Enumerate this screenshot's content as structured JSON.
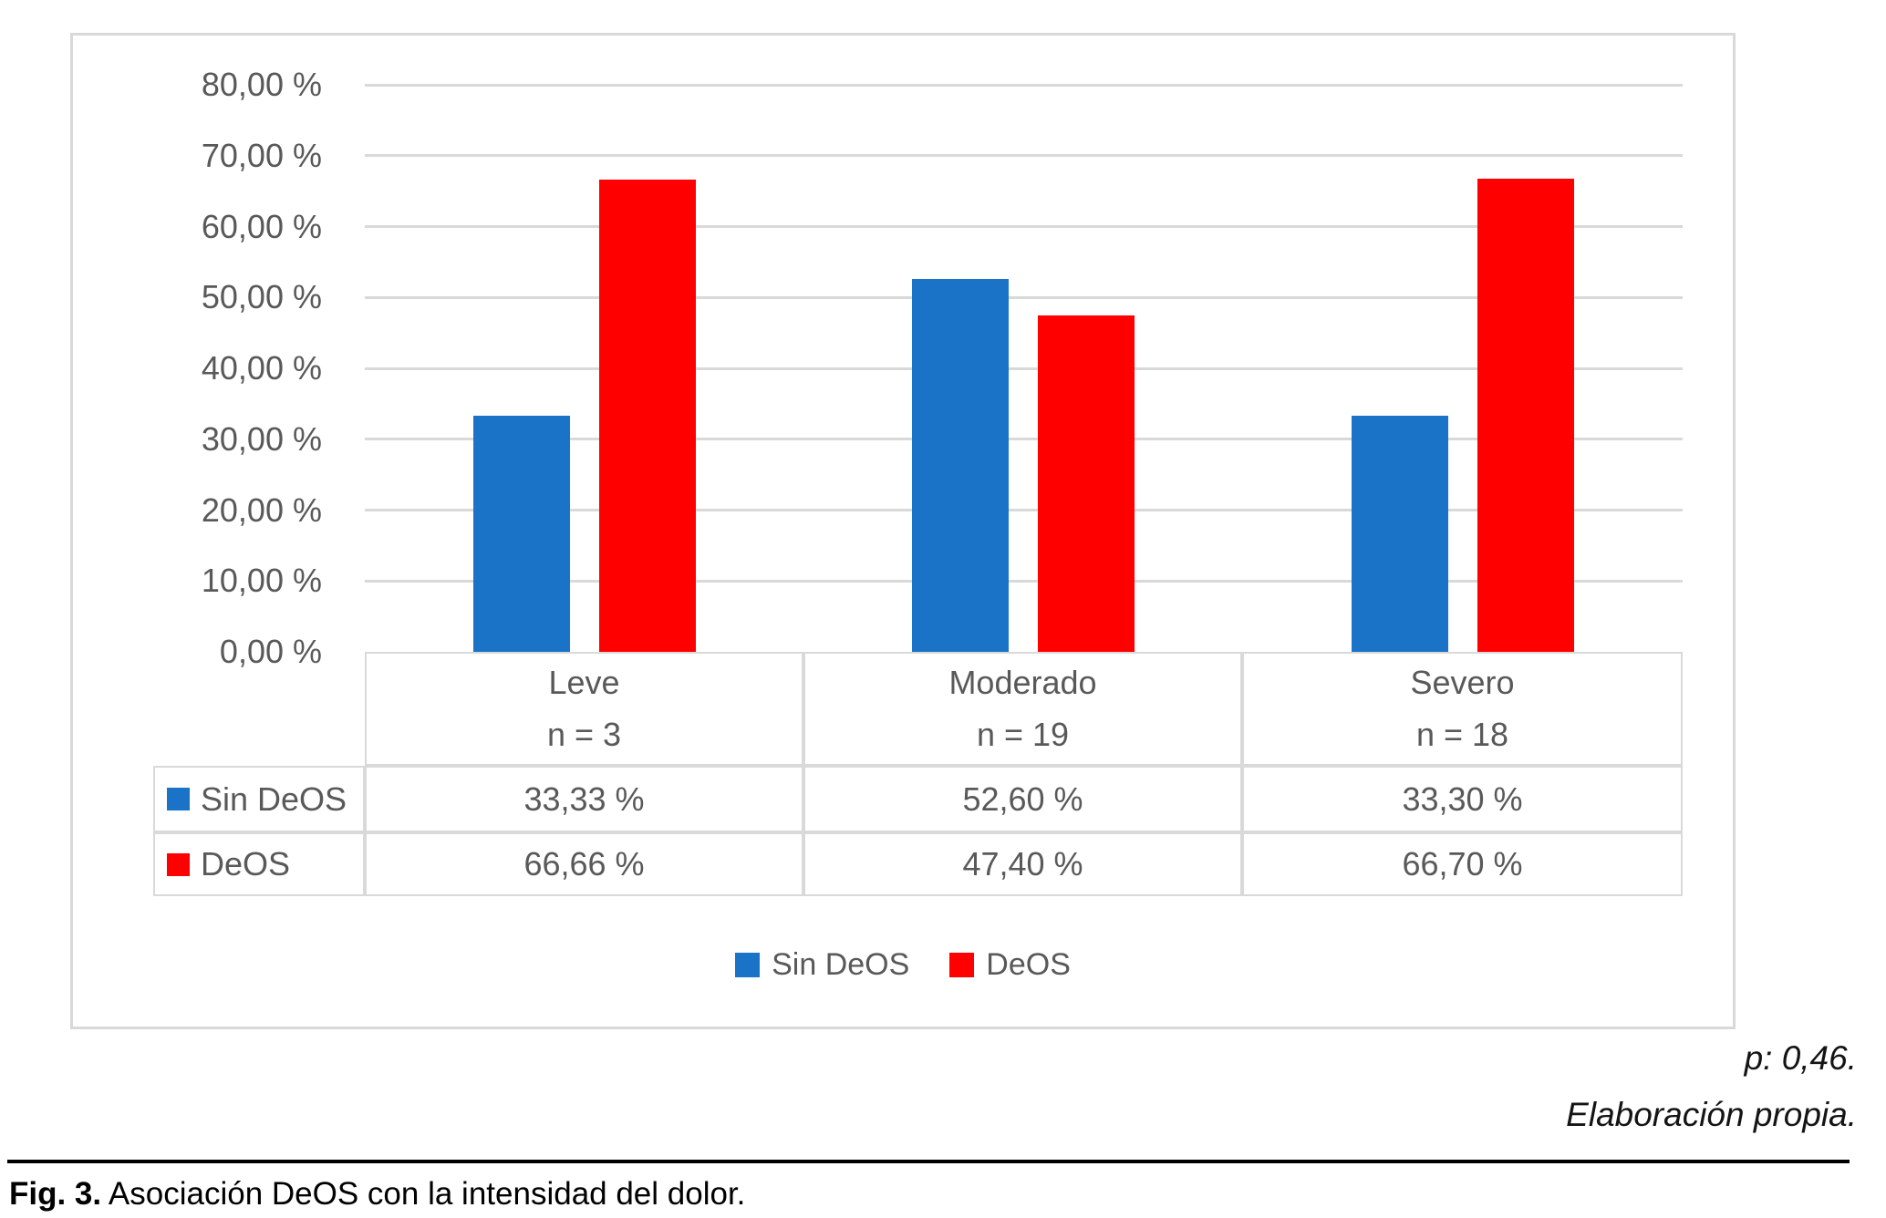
{
  "chart_data": {
    "type": "bar",
    "categories": [
      "Leve",
      "Moderado",
      "Severo"
    ],
    "category_counts": [
      "n = 3",
      "n = 19",
      "n = 18"
    ],
    "series": [
      {
        "name": "Sin DeOS",
        "color": "#1b73c7",
        "values": [
          33.33,
          52.6,
          33.3
        ],
        "labels": [
          "33,33 %",
          "52,60 %",
          "33,30 %"
        ]
      },
      {
        "name": "DeOS",
        "color": "#ff0000",
        "values": [
          66.66,
          47.4,
          66.7
        ],
        "labels": [
          "66,66 %",
          "47,40 %",
          "66,70 %"
        ]
      }
    ],
    "ylim": [
      0,
      80
    ],
    "y_ticks": [
      {
        "value": 80,
        "label": "80,00 %"
      },
      {
        "value": 70,
        "label": "70,00 %"
      },
      {
        "value": 60,
        "label": "60,00 %"
      },
      {
        "value": 50,
        "label": "50,00 %"
      },
      {
        "value": 40,
        "label": "40,00 %"
      },
      {
        "value": 30,
        "label": "30,00 %"
      },
      {
        "value": 20,
        "label": "20,00 %"
      },
      {
        "value": 10,
        "label": "10,00 %"
      },
      {
        "value": 0,
        "label": "0,00 %"
      }
    ],
    "grid": true,
    "legend_position": "bottom",
    "gridline_color": "#d9d9d9",
    "text_color": "#595959"
  },
  "footnotes": {
    "p_value": "p: 0,46.",
    "source": "Elaboración propia."
  },
  "caption": {
    "label": "Fig. 3.",
    "text": " Asociación DeOS con la intensidad del dolor."
  }
}
